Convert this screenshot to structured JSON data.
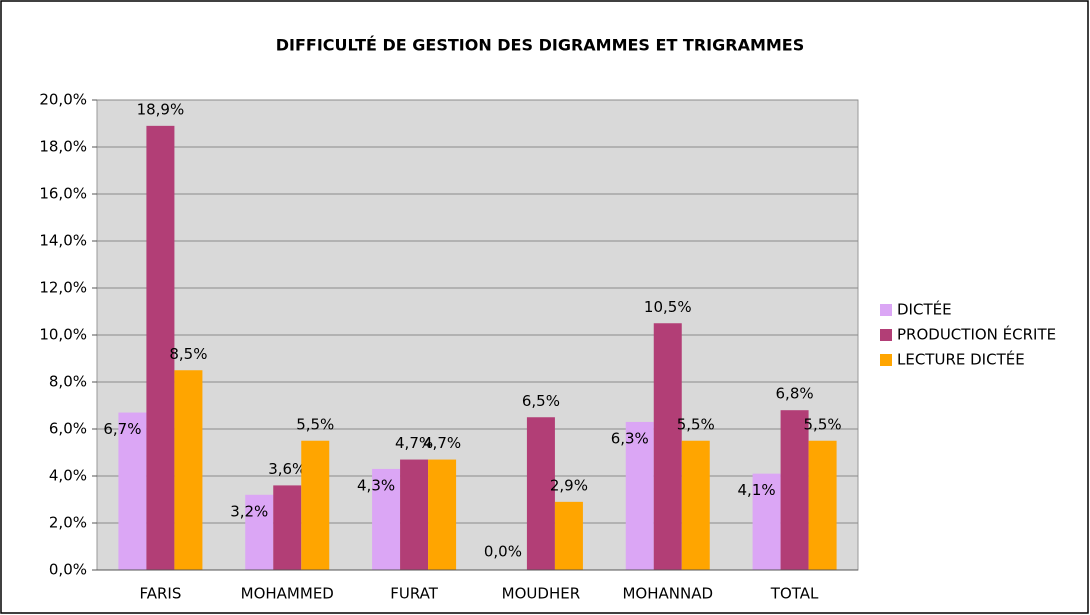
{
  "chart_data": {
    "type": "bar",
    "title": "DIFFICULTÉ DE GESTION DES DIGRAMMES ET TRIGRAMMES",
    "categories": [
      "FARIS",
      "MOHAMMED",
      "FURAT",
      "MOUDHER",
      "MOHANNAD",
      "TOTAL"
    ],
    "series": [
      {
        "name": "DICTÉE",
        "color": "#dba6f5",
        "values": [
          6.7,
          3.2,
          4.3,
          0,
          6.3,
          4.1
        ],
        "value_labels": [
          "6,7%",
          "3,2%",
          "4,3%",
          "0,0%",
          "6,3%",
          "4,1%"
        ]
      },
      {
        "name": "PRODUCTION ÉCRITE",
        "color": "#b23e76",
        "values": [
          18.9,
          3.6,
          4.7,
          6.5,
          10.5,
          6.8
        ],
        "value_labels": [
          "18,9%",
          "3,6%",
          "4,7%",
          "6,5%",
          "10,5%",
          "6,8%"
        ]
      },
      {
        "name": "LECTURE DICTÉE",
        "color": "#ffa500",
        "values": [
          8.5,
          5.5,
          4.7,
          2.9,
          5.5,
          5.5
        ],
        "value_labels": [
          "8,5%",
          "5,5%",
          "4,7%",
          "2,9%",
          "5,5%",
          "5,5%"
        ]
      }
    ],
    "ylim": [
      0,
      20
    ],
    "yticks": [
      {
        "value": 0,
        "label": "0,0%"
      },
      {
        "value": 2,
        "label": "2,0%"
      },
      {
        "value": 4,
        "label": "4,0%"
      },
      {
        "value": 6,
        "label": "6,0%"
      },
      {
        "value": 8,
        "label": "8,0%"
      },
      {
        "value": 10,
        "label": "10,0%"
      },
      {
        "value": 12,
        "label": "12,0%"
      },
      {
        "value": 14,
        "label": "14,0%"
      },
      {
        "value": 16,
        "label": "16,0%"
      },
      {
        "value": 18,
        "label": "18,0%"
      },
      {
        "value": 20,
        "label": "20,0%"
      }
    ],
    "grid": true,
    "legend": "right"
  }
}
